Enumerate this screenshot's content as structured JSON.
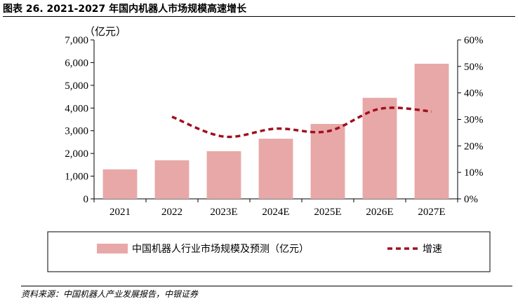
{
  "header": {
    "title": "图表 26. 2021-2027 年国内机器人市场规模高速增长"
  },
  "footer": {
    "source": "资料来源：中国机器人产业发展报告，中银证券"
  },
  "chart_data": {
    "type": "bar",
    "categories": [
      "2021",
      "2022",
      "2023E",
      "2024E",
      "2025E",
      "2026E",
      "2027E"
    ],
    "series": [
      {
        "name": "中国机器人行业市场规模及预测（亿元）",
        "kind": "bar",
        "axis": "left",
        "values": [
          1300,
          1700,
          2100,
          2650,
          3300,
          4450,
          5950
        ],
        "color": "#e8a8a8"
      },
      {
        "name": "增速",
        "kind": "line",
        "axis": "right",
        "style": "dashed",
        "values": [
          null,
          31,
          23.5,
          26.5,
          25.5,
          34,
          33
        ],
        "color": "#a0101e"
      }
    ],
    "yleft": {
      "unit_label": "（亿元）",
      "lim": [
        0,
        7000
      ],
      "ticks": [
        "0",
        "1,000",
        "2,000",
        "3,000",
        "4,000",
        "5,000",
        "6,000",
        "7,000"
      ]
    },
    "yright": {
      "lim": [
        0,
        60
      ],
      "ticks": [
        "0%",
        "10%",
        "20%",
        "30%",
        "40%",
        "50%",
        "60%"
      ]
    },
    "legend": [
      "中国机器人行业市场规模及预测（亿元）",
      "增速"
    ],
    "legend_position": "bottom"
  }
}
